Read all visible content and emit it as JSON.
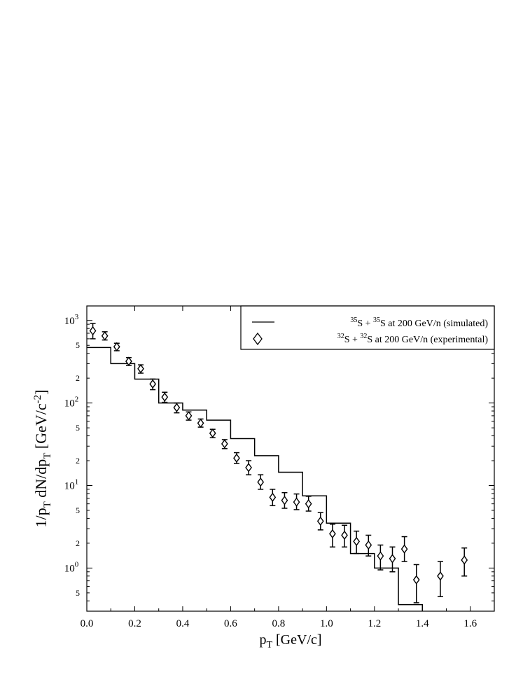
{
  "chart_data": {
    "type": "scatter",
    "xlabel": {
      "main": "p",
      "sub": "T",
      "rest": " [GeV/c]"
    },
    "ylabel": {
      "p1": "1/p",
      "s1": "T",
      "p2": " dN/dp",
      "s2": "T",
      "p3": " [GeV/c",
      "sup": "-2",
      "p4": "]"
    },
    "x_range": [
      0.0,
      1.7
    ],
    "y_range": [
      0.3,
      1500
    ],
    "y_scale": "log",
    "grid": false,
    "legend_position": "top-right",
    "x_ticks": [
      {
        "v": 0.0,
        "label": "0.0"
      },
      {
        "v": 0.2,
        "label": "0.2"
      },
      {
        "v": 0.4,
        "label": "0.4"
      },
      {
        "v": 0.6,
        "label": "0.6"
      },
      {
        "v": 0.8,
        "label": "0.8"
      },
      {
        "v": 1.0,
        "label": "1.0"
      },
      {
        "v": 1.2,
        "label": "1.2"
      },
      {
        "v": 1.4,
        "label": "1.4"
      },
      {
        "v": 1.6,
        "label": "1.6"
      }
    ],
    "y_major_ticks": [
      {
        "v": 1,
        "base": "10",
        "exp": "0"
      },
      {
        "v": 10,
        "base": "10",
        "exp": "1"
      },
      {
        "v": 100,
        "base": "10",
        "exp": "2"
      },
      {
        "v": 1000,
        "base": "10",
        "exp": "3"
      }
    ],
    "y_minor_labels": [
      {
        "v": 0.5,
        "label": "5"
      },
      {
        "v": 2,
        "label": "2"
      },
      {
        "v": 5,
        "label": "5"
      },
      {
        "v": 20,
        "label": "2"
      },
      {
        "v": 50,
        "label": "5"
      },
      {
        "v": 200,
        "label": "2"
      },
      {
        "v": 500,
        "label": "5"
      }
    ],
    "series": [
      {
        "name": "simulated",
        "legend": {
          "sup1": "35",
          "t1": "S + ",
          "sup2": "35",
          "t2": "S at 200 GeV/n (simulated)"
        },
        "style": "step",
        "color": "#000000",
        "bins": [
          {
            "x0": 0.0,
            "x1": 0.1,
            "y": 470
          },
          {
            "x0": 0.1,
            "x1": 0.2,
            "y": 300
          },
          {
            "x0": 0.2,
            "x1": 0.3,
            "y": 195
          },
          {
            "x0": 0.3,
            "x1": 0.4,
            "y": 100
          },
          {
            "x0": 0.4,
            "x1": 0.5,
            "y": 82
          },
          {
            "x0": 0.5,
            "x1": 0.6,
            "y": 62
          },
          {
            "x0": 0.6,
            "x1": 0.7,
            "y": 37
          },
          {
            "x0": 0.7,
            "x1": 0.8,
            "y": 23
          },
          {
            "x0": 0.8,
            "x1": 0.9,
            "y": 14.5
          },
          {
            "x0": 0.9,
            "x1": 1.0,
            "y": 7.5
          },
          {
            "x0": 1.0,
            "x1": 1.1,
            "y": 3.5
          },
          {
            "x0": 1.1,
            "x1": 1.2,
            "y": 1.5
          },
          {
            "x0": 1.2,
            "x1": 1.3,
            "y": 1.0
          },
          {
            "x0": 1.3,
            "x1": 1.4,
            "y": 0.36
          }
        ]
      },
      {
        "name": "experimental",
        "legend": {
          "sup1": "32",
          "t1": "S + ",
          "sup2": "32",
          "t2": "S at 200 GeV/n (experimental)"
        },
        "style": "diamond",
        "color": "#000000",
        "points": [
          {
            "x": 0.025,
            "y": 750,
            "lo": 600,
            "hi": 920
          },
          {
            "x": 0.075,
            "y": 650,
            "lo": 580,
            "hi": 730
          },
          {
            "x": 0.125,
            "y": 480,
            "lo": 430,
            "hi": 530
          },
          {
            "x": 0.175,
            "y": 320,
            "lo": 285,
            "hi": 355
          },
          {
            "x": 0.225,
            "y": 260,
            "lo": 230,
            "hi": 290
          },
          {
            "x": 0.275,
            "y": 170,
            "lo": 145,
            "hi": 195
          },
          {
            "x": 0.325,
            "y": 118,
            "lo": 102,
            "hi": 135
          },
          {
            "x": 0.375,
            "y": 88,
            "lo": 76,
            "hi": 100
          },
          {
            "x": 0.425,
            "y": 70,
            "lo": 62,
            "hi": 78
          },
          {
            "x": 0.475,
            "y": 57,
            "lo": 51,
            "hi": 64
          },
          {
            "x": 0.525,
            "y": 43,
            "lo": 38,
            "hi": 48
          },
          {
            "x": 0.575,
            "y": 32,
            "lo": 28,
            "hi": 36
          },
          {
            "x": 0.625,
            "y": 21.5,
            "lo": 18.5,
            "hi": 25
          },
          {
            "x": 0.675,
            "y": 16.5,
            "lo": 13.5,
            "hi": 20
          },
          {
            "x": 0.725,
            "y": 11,
            "lo": 9,
            "hi": 13.5
          },
          {
            "x": 0.775,
            "y": 7.2,
            "lo": 5.7,
            "hi": 9
          },
          {
            "x": 0.825,
            "y": 6.6,
            "lo": 5.3,
            "hi": 8.2
          },
          {
            "x": 0.875,
            "y": 6.3,
            "lo": 5.1,
            "hi": 7.9
          },
          {
            "x": 0.925,
            "y": 6.0,
            "lo": 4.9,
            "hi": 7.4
          },
          {
            "x": 0.975,
            "y": 3.7,
            "lo": 2.9,
            "hi": 4.7
          },
          {
            "x": 1.025,
            "y": 2.6,
            "lo": 1.8,
            "hi": 3.4
          },
          {
            "x": 1.075,
            "y": 2.5,
            "lo": 1.8,
            "hi": 3.3
          },
          {
            "x": 1.125,
            "y": 2.1,
            "lo": 1.5,
            "hi": 2.8
          },
          {
            "x": 1.175,
            "y": 1.9,
            "lo": 1.4,
            "hi": 2.5
          },
          {
            "x": 1.225,
            "y": 1.4,
            "lo": 0.95,
            "hi": 1.9
          },
          {
            "x": 1.275,
            "y": 1.3,
            "lo": 0.9,
            "hi": 1.8
          },
          {
            "x": 1.325,
            "y": 1.7,
            "lo": 1.2,
            "hi": 2.4
          },
          {
            "x": 1.375,
            "y": 0.72,
            "lo": 0.38,
            "hi": 1.1
          },
          {
            "x": 1.475,
            "y": 0.8,
            "lo": 0.45,
            "hi": 1.2
          },
          {
            "x": 1.575,
            "y": 1.25,
            "lo": 0.8,
            "hi": 1.75
          }
        ]
      }
    ]
  }
}
